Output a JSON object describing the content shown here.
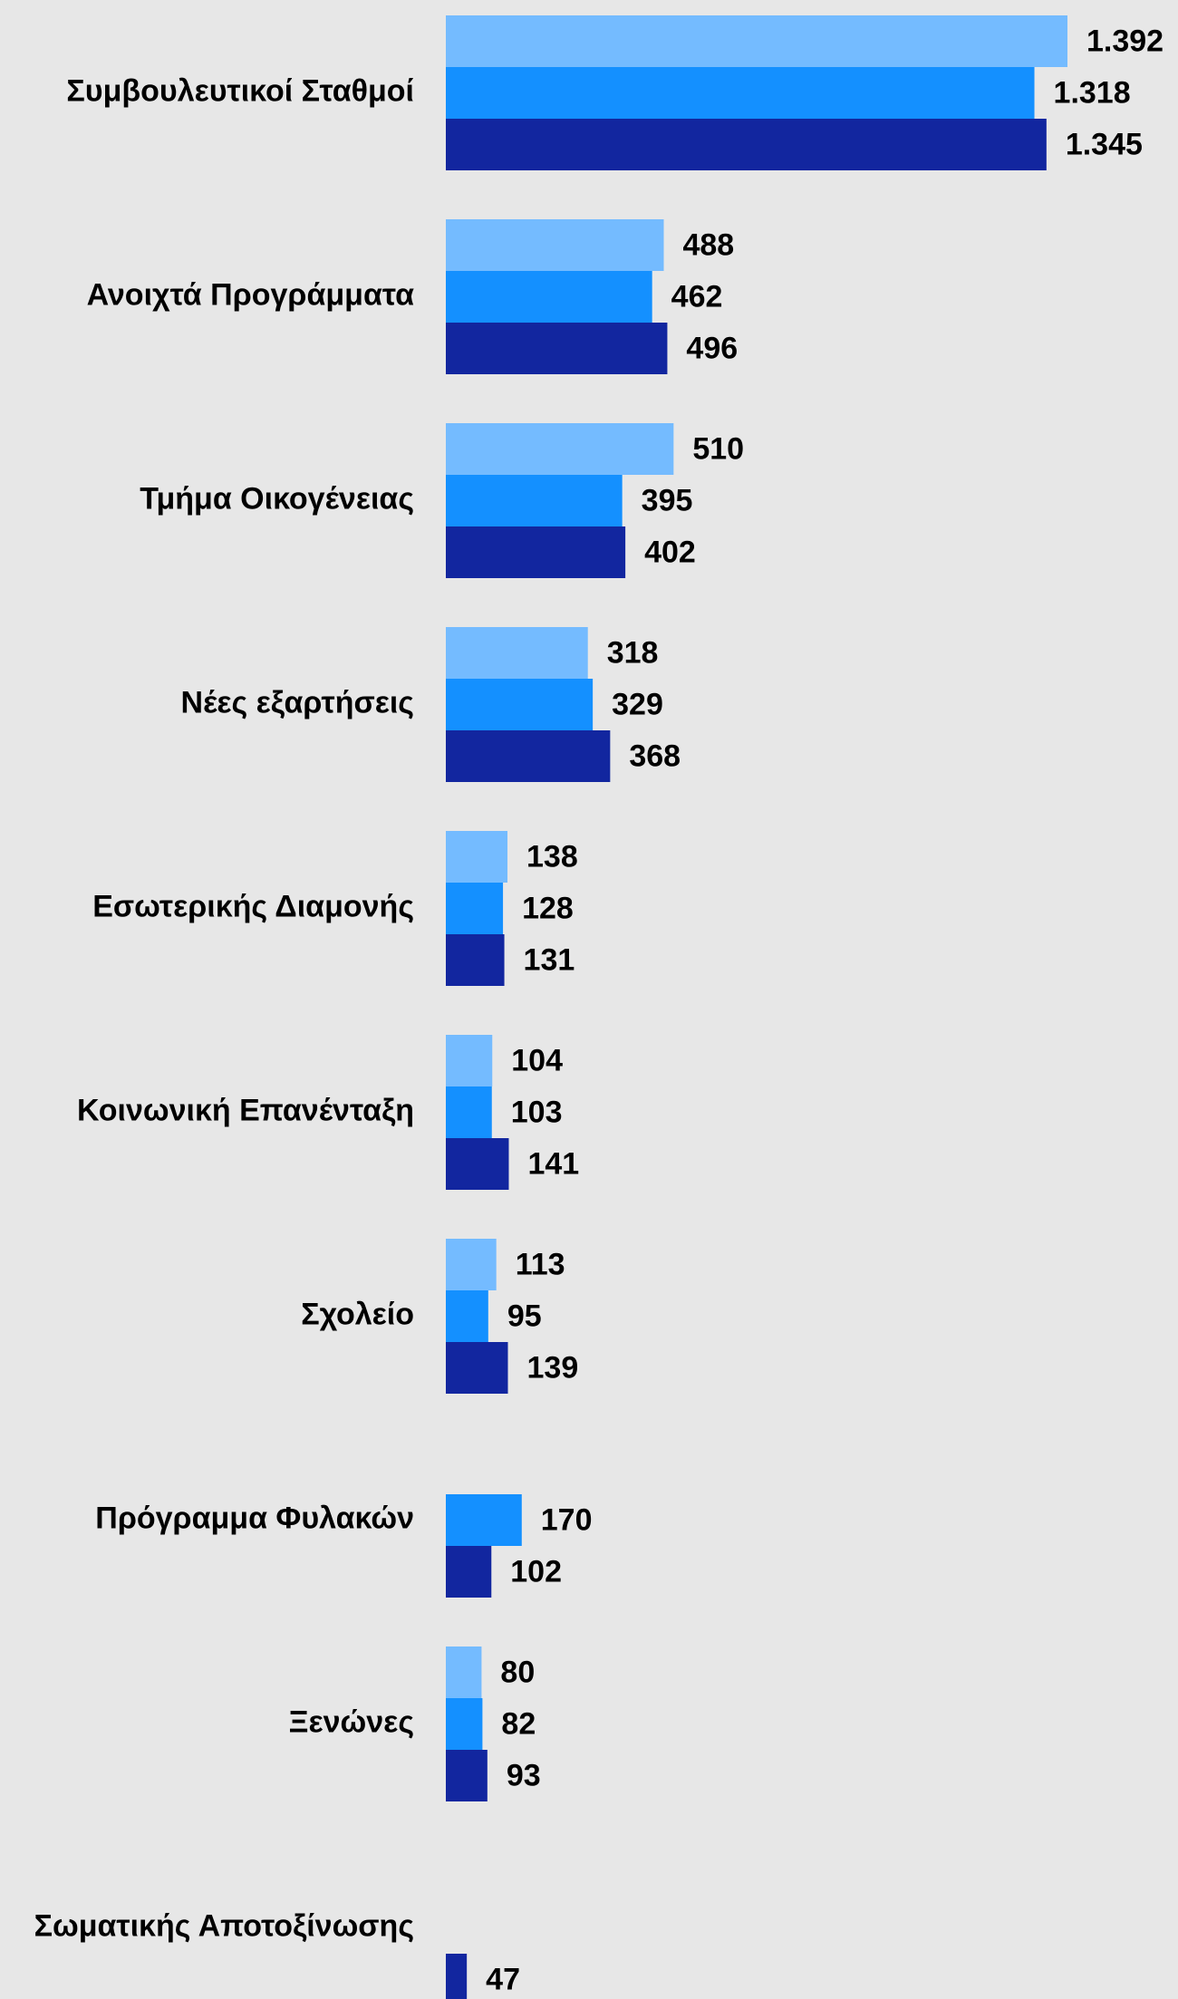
{
  "chart_data": {
    "type": "bar",
    "orientation": "horizontal",
    "categories": [
      "Συμβουλευτικοί Σταθμοί",
      "Ανοιχτά Προγράμματα",
      "Τμήμα Οικογένειας",
      "Νέες εξαρτήσεις",
      "Εσωτερικής Διαμονής",
      "Κοινωνική Επανένταξη",
      "Σχολείο",
      "Πρόγραμμα Φυλακών",
      "Ξενώνες",
      "Σωματικής Αποτοξίνωσης"
    ],
    "series": [
      {
        "color": "#74bbff",
        "values": [
          1392,
          488,
          510,
          318,
          138,
          104,
          113,
          null,
          80,
          null
        ],
        "value_labels": [
          "1.392",
          "488",
          "510",
          "318",
          "138",
          "104",
          "113",
          null,
          "80",
          null
        ]
      },
      {
        "color": "#1490ff",
        "values": [
          1318,
          462,
          395,
          329,
          128,
          103,
          95,
          170,
          82,
          null
        ],
        "value_labels": [
          "1.318",
          "462",
          "395",
          "329",
          "128",
          "103",
          "95",
          "170",
          "82",
          null
        ]
      },
      {
        "color": "#12269f",
        "values": [
          1345,
          496,
          402,
          368,
          131,
          141,
          139,
          102,
          93,
          47
        ],
        "value_labels": [
          "1.345",
          "496",
          "402",
          "368",
          "131",
          "141",
          "139",
          "102",
          "93",
          "47"
        ]
      }
    ]
  }
}
